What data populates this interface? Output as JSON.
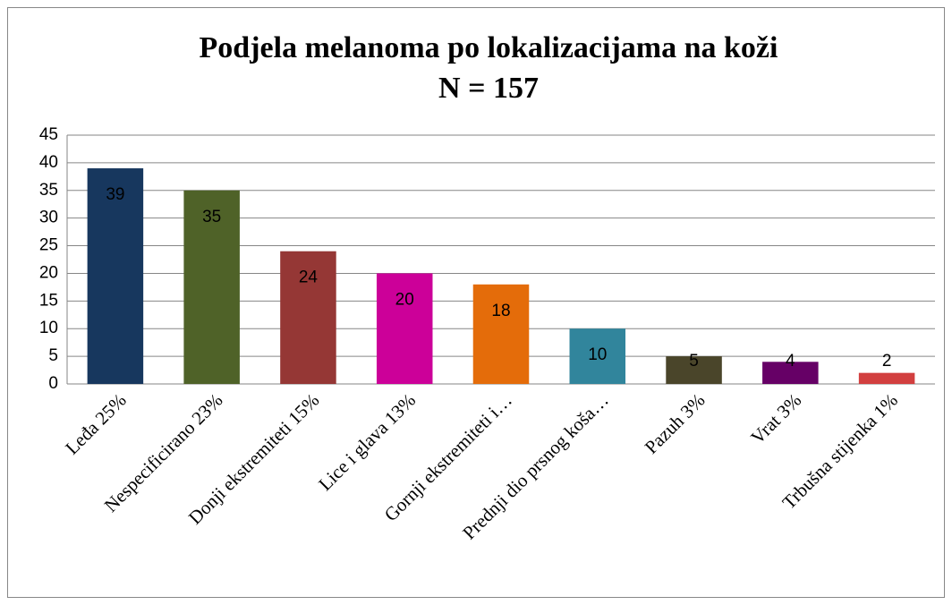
{
  "chart_data": {
    "type": "bar",
    "title": "Podjela melanoma po lokalizacijama na koži",
    "subtitle": "N = 157",
    "categories": [
      "Leđa 25%",
      "Nespecificirano 23%",
      "Donji ekstremiteti 15%",
      "Lice i glava 13%",
      "Gornji ekstremiteti i…",
      "Prednji dio prsnog koša…",
      "Pazuh 3%",
      "Vrat 3%",
      "Trbušna stijenka 1%"
    ],
    "values": [
      39,
      35,
      24,
      20,
      18,
      10,
      5,
      4,
      2
    ],
    "colors": [
      "#17375e",
      "#4f6228",
      "#953735",
      "#cc0099",
      "#e46c0a",
      "#31859c",
      "#4a452a",
      "#660066",
      "#d23f3f"
    ],
    "ylim": [
      0,
      45
    ],
    "yticks": [
      0,
      5,
      10,
      15,
      20,
      25,
      30,
      35,
      40,
      45
    ],
    "grid": true,
    "data_labels": true
  }
}
